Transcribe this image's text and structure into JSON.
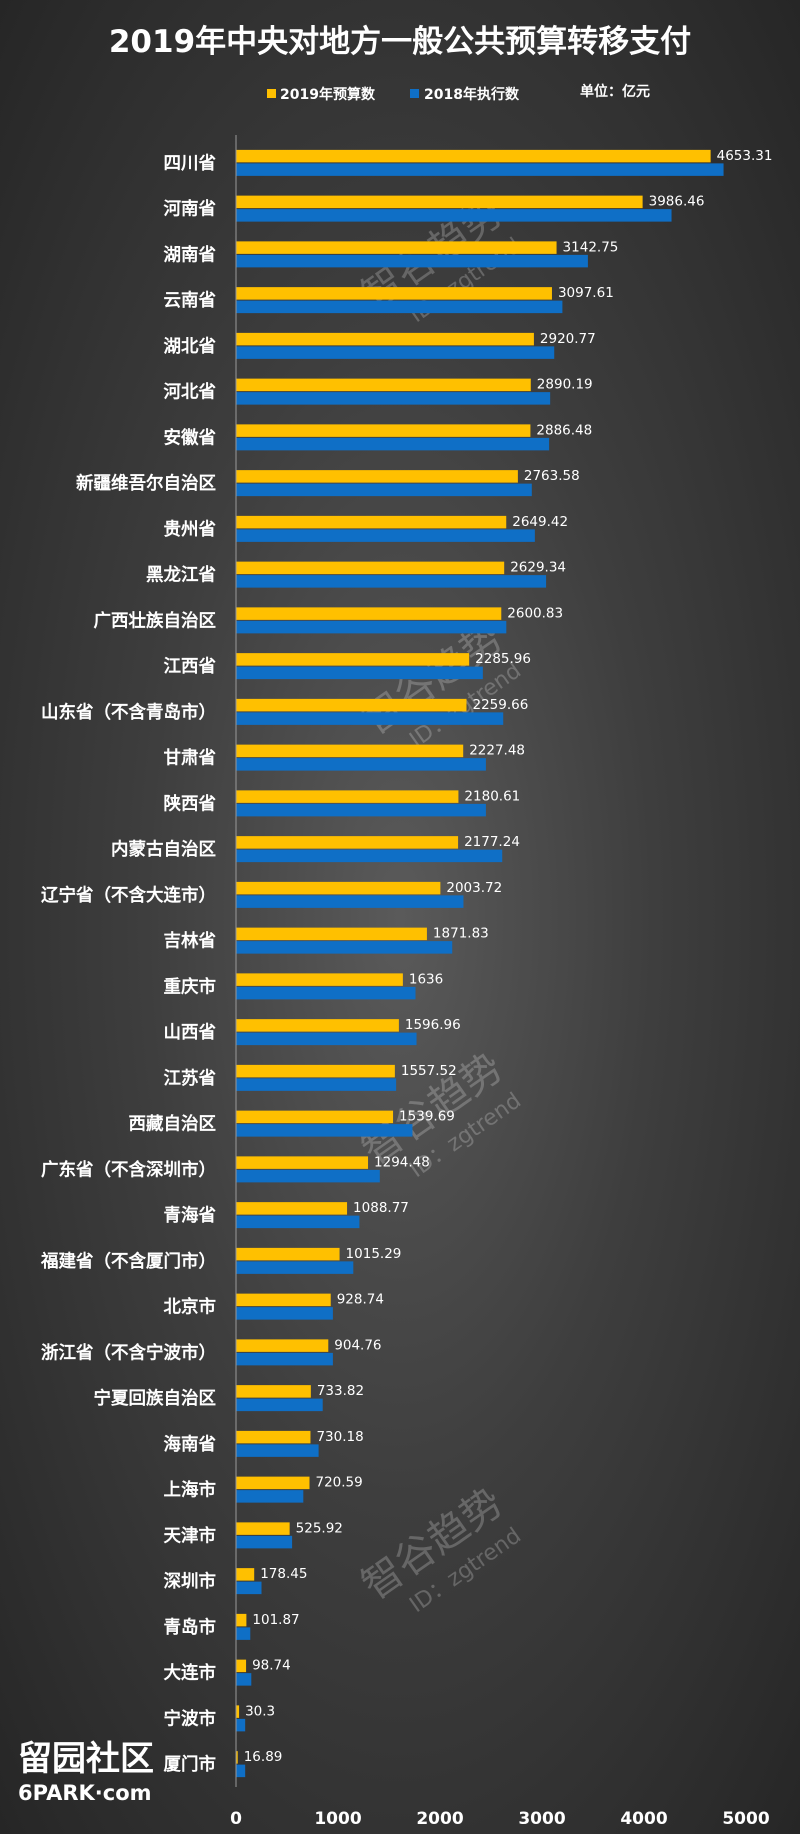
{
  "chart_data": {
    "type": "bar",
    "orientation": "horizontal",
    "title": "2019年中央对地方一般公共预算转移支付",
    "unit_note": "单位：亿元",
    "xlim": [
      0,
      5000
    ],
    "xticks": [
      "0",
      "1000",
      "2000",
      "3000",
      "4000",
      "5000"
    ],
    "grid": false,
    "legend_position": "top",
    "categories": [
      "四川省",
      "河南省",
      "湖南省",
      "云南省",
      "湖北省",
      "河北省",
      "安徽省",
      "新疆维吾尔自治区",
      "贵州省",
      "黑龙江省",
      "广西壮族自治区",
      "江西省",
      "山东省（不含青岛市）",
      "甘肃省",
      "陕西省",
      "内蒙古自治区",
      "辽宁省（不含大连市）",
      "吉林省",
      "重庆市",
      "山西省",
      "江苏省",
      "西藏自治区",
      "广东省（不含深圳市）",
      "青海省",
      "福建省（不含厦门市）",
      "北京市",
      "浙江省（不含宁波市）",
      "宁夏回族自治区",
      "海南省",
      "上海市",
      "天津市",
      "深圳市",
      "青岛市",
      "大连市",
      "宁波市",
      "厦门市"
    ],
    "series": [
      {
        "name": "2019年预算数",
        "color": "#ffc000",
        "values": [
          4653.31,
          3986.46,
          3142.75,
          3097.61,
          2920.77,
          2890.19,
          2886.48,
          2763.58,
          2649.42,
          2629.34,
          2600.83,
          2285.96,
          2259.66,
          2227.48,
          2180.61,
          2177.24,
          2003.72,
          1871.83,
          1636,
          1596.96,
          1557.52,
          1539.69,
          1294.48,
          1088.77,
          1015.29,
          928.74,
          904.76,
          733.82,
          730.18,
          720.59,
          525.92,
          178.45,
          101.87,
          98.74,
          30.3,
          16.89
        ],
        "labels": [
          "4653.31",
          "3986.46",
          "3142.75",
          "3097.61",
          "2920.77",
          "2890.19",
          "2886.48",
          "2763.58",
          "2649.42",
          "2629.34",
          "2600.83",
          "2285.96",
          "2259.66",
          "2227.48",
          "2180.61",
          "2177.24",
          "2003.72",
          "1871.83",
          "1636",
          "1596.96",
          "1557.52",
          "1539.69",
          "1294.48",
          "1088.77",
          "1015.29",
          "928.74",
          "904.76",
          "733.82",
          "730.18",
          "720.59",
          "525.92",
          "178.45",
          "101.87",
          "98.74",
          "30.3",
          "16.89"
        ]
      },
      {
        "name": "2018年执行数",
        "color": "#0f6fc6",
        "values": [
          4780,
          4270,
          3450,
          3200,
          3120,
          3080,
          3070,
          2900,
          2930,
          3040,
          2650,
          2420,
          2620,
          2450,
          2450,
          2610,
          2230,
          2120,
          1760,
          1770,
          1570,
          1730,
          1410,
          1210,
          1150,
          950,
          950,
          850,
          810,
          660,
          550,
          250,
          140,
          150,
          90,
          90
        ]
      }
    ]
  },
  "watermark": {
    "text": "智谷趋势",
    "sub": "ID：zgtrend"
  },
  "site": {
    "logo": "留园社区",
    "url": "6PARK·com"
  }
}
